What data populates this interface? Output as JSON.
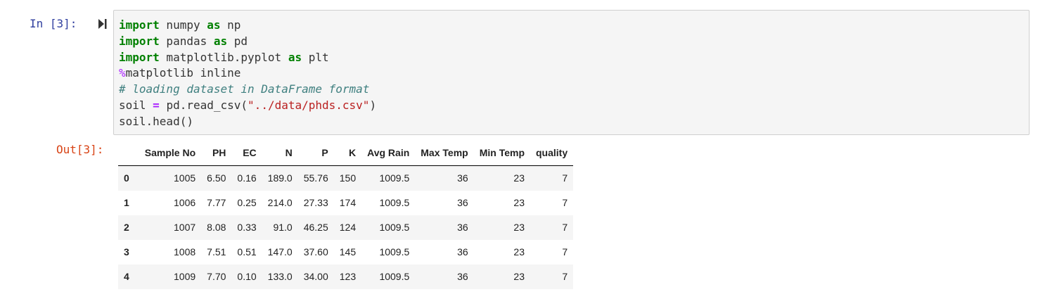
{
  "cell": {
    "in_prompt": "In [3]:",
    "out_prompt": "Out[3]:",
    "run_icon": "run-cell-icon",
    "code_lines": [
      [
        {
          "t": "import",
          "c": "kw"
        },
        {
          "t": " numpy ",
          "c": ""
        },
        {
          "t": "as",
          "c": "kw"
        },
        {
          "t": " np",
          "c": ""
        }
      ],
      [
        {
          "t": "import",
          "c": "kw"
        },
        {
          "t": " pandas ",
          "c": ""
        },
        {
          "t": "as",
          "c": "kw"
        },
        {
          "t": " pd",
          "c": ""
        }
      ],
      [
        {
          "t": "import",
          "c": "kw"
        },
        {
          "t": " matplotlib.pyplot ",
          "c": ""
        },
        {
          "t": "as",
          "c": "kw"
        },
        {
          "t": " plt",
          "c": ""
        }
      ],
      [
        {
          "t": "%",
          "c": "magic"
        },
        {
          "t": "matplotlib inline",
          "c": ""
        }
      ],
      [
        {
          "t": "# loading dataset in DataFrame format",
          "c": "cm"
        }
      ],
      [
        {
          "t": "soil ",
          "c": ""
        },
        {
          "t": "=",
          "c": "op"
        },
        {
          "t": " pd.read_csv(",
          "c": ""
        },
        {
          "t": "\"../data/phds.csv\"",
          "c": "str"
        },
        {
          "t": ")",
          "c": ""
        }
      ],
      [
        {
          "t": "soil.head()",
          "c": ""
        }
      ]
    ]
  },
  "dataframe": {
    "columns": [
      "Sample No",
      "PH",
      "EC",
      "N",
      "P",
      "K",
      "Avg Rain",
      "Max Temp",
      "Min Temp",
      "quality"
    ],
    "rows": [
      {
        "index": "0",
        "values": [
          "1005",
          "6.50",
          "0.16",
          "189.0",
          "55.76",
          "150",
          "1009.5",
          "36",
          "23",
          "7"
        ]
      },
      {
        "index": "1",
        "values": [
          "1006",
          "7.77",
          "0.25",
          "214.0",
          "27.33",
          "174",
          "1009.5",
          "36",
          "23",
          "7"
        ]
      },
      {
        "index": "2",
        "values": [
          "1007",
          "8.08",
          "0.33",
          "91.0",
          "46.25",
          "124",
          "1009.5",
          "36",
          "23",
          "7"
        ]
      },
      {
        "index": "3",
        "values": [
          "1008",
          "7.51",
          "0.51",
          "147.0",
          "37.60",
          "145",
          "1009.5",
          "36",
          "23",
          "7"
        ]
      },
      {
        "index": "4",
        "values": [
          "1009",
          "7.70",
          "0.10",
          "133.0",
          "34.00",
          "123",
          "1009.5",
          "36",
          "23",
          "7"
        ]
      }
    ]
  },
  "colors": {
    "in_prompt": "#303f9f",
    "out_prompt": "#d84315",
    "keyword": "#008000",
    "string": "#ba2121",
    "comment": "#408080",
    "magic": "#aa22ff",
    "cell_background": "#f5f5f5",
    "cell_border": "#cfcfcf",
    "striped_row": "#f5f5f5"
  }
}
